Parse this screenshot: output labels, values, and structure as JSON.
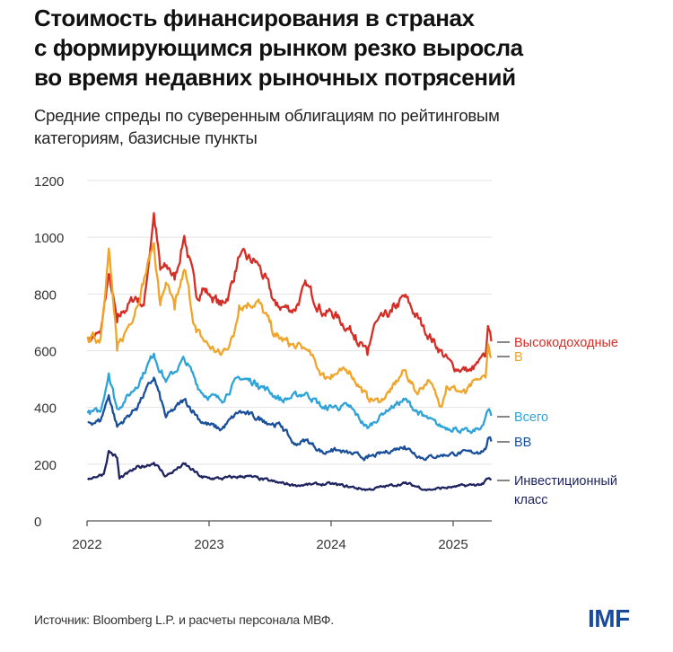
{
  "title_lines": [
    "Стоимость финансирования в странах",
    "с формирующимся рынком резко выросла",
    "во время недавних рыночных потрясений"
  ],
  "subtitle_lines": [
    "Средние спреды по суверенным облигациям по рейтинговым",
    "категориям, базисные пункты"
  ],
  "source": "Источник: Bloomberg L.P. и расчеты персонала МВФ.",
  "logo": "IMF",
  "chart_data": {
    "type": "line",
    "title": "",
    "xlabel": "",
    "ylabel": "",
    "ylim": [
      0,
      1200
    ],
    "xlim": [
      "2022-01-01",
      "2025-04-30"
    ],
    "grid": true,
    "legend": "right, end-of-line labels",
    "y_ticks": [
      "0",
      "200",
      "400",
      "600",
      "800",
      "1000",
      "1200"
    ],
    "x_ticks": [
      "2022",
      "2023",
      "2024",
      "2025"
    ],
    "series": [
      {
        "name": "Высокодоходные",
        "color": "#d42e27",
        "points": [
          [
            "2022-01-03",
            640
          ],
          [
            "2022-02-10",
            660
          ],
          [
            "2022-03-07",
            870
          ],
          [
            "2022-04-01",
            700
          ],
          [
            "2022-04-20",
            740
          ],
          [
            "2022-05-26",
            790
          ],
          [
            "2022-06-20",
            760
          ],
          [
            "2022-07-20",
            1085
          ],
          [
            "2022-08-08",
            885
          ],
          [
            "2022-09-05",
            890
          ],
          [
            "2022-09-20",
            850
          ],
          [
            "2022-10-19",
            1005
          ],
          [
            "2022-11-24",
            790
          ],
          [
            "2022-12-12",
            820
          ],
          [
            "2023-01-02",
            800
          ],
          [
            "2023-02-06",
            760
          ],
          [
            "2023-03-01",
            800
          ],
          [
            "2023-04-01",
            930
          ],
          [
            "2023-05-26",
            910
          ],
          [
            "2023-07-20",
            760
          ],
          [
            "2023-09-13",
            745
          ],
          [
            "2023-10-19",
            830
          ],
          [
            "2023-12-12",
            730
          ],
          [
            "2024-01-02",
            737
          ],
          [
            "2024-03-14",
            655
          ],
          [
            "2024-04-19",
            585
          ],
          [
            "2024-05-08",
            687
          ],
          [
            "2024-07-01",
            737
          ],
          [
            "2024-08-08",
            790
          ],
          [
            "2024-10-01",
            687
          ],
          [
            "2024-11-24",
            600
          ],
          [
            "2025-01-02",
            540
          ],
          [
            "2025-02-24",
            530
          ],
          [
            "2025-04-08",
            580
          ],
          [
            "2025-04-15",
            687
          ],
          [
            "2025-04-25",
            633
          ]
        ]
      },
      {
        "name": "B",
        "color": "#f0a52a",
        "points": [
          [
            "2022-01-03",
            650
          ],
          [
            "2022-02-10",
            640
          ],
          [
            "2022-03-07",
            960
          ],
          [
            "2022-04-01",
            600
          ],
          [
            "2022-05-26",
            745
          ],
          [
            "2022-07-20",
            980
          ],
          [
            "2022-08-08",
            760
          ],
          [
            "2022-08-25",
            840
          ],
          [
            "2022-09-20",
            745
          ],
          [
            "2022-10-19",
            885
          ],
          [
            "2022-11-24",
            665
          ],
          [
            "2023-01-02",
            615
          ],
          [
            "2023-02-06",
            585
          ],
          [
            "2023-03-15",
            650
          ],
          [
            "2023-04-01",
            760
          ],
          [
            "2023-05-26",
            775
          ],
          [
            "2023-07-20",
            650
          ],
          [
            "2023-09-13",
            615
          ],
          [
            "2023-10-19",
            605
          ],
          [
            "2023-12-12",
            505
          ],
          [
            "2024-01-02",
            515
          ],
          [
            "2024-02-25",
            528
          ],
          [
            "2024-04-19",
            433
          ],
          [
            "2024-05-26",
            420
          ],
          [
            "2024-07-01",
            465
          ],
          [
            "2024-08-08",
            532
          ],
          [
            "2024-09-13",
            452
          ],
          [
            "2024-10-19",
            497
          ],
          [
            "2024-11-24",
            405
          ],
          [
            "2024-12-12",
            475
          ],
          [
            "2025-02-06",
            450
          ],
          [
            "2025-03-14",
            497
          ],
          [
            "2025-04-08",
            505
          ],
          [
            "2025-04-15",
            623
          ],
          [
            "2025-04-25",
            575
          ]
        ]
      },
      {
        "name": "Всего",
        "color": "#2ea3d8",
        "points": [
          [
            "2022-01-03",
            380
          ],
          [
            "2022-02-10",
            385
          ],
          [
            "2022-03-07",
            520
          ],
          [
            "2022-04-01",
            395
          ],
          [
            "2022-05-26",
            470
          ],
          [
            "2022-07-20",
            590
          ],
          [
            "2022-08-25",
            490
          ],
          [
            "2022-10-19",
            570
          ],
          [
            "2022-12-12",
            450
          ],
          [
            "2023-02-06",
            425
          ],
          [
            "2023-04-01",
            505
          ],
          [
            "2023-05-26",
            485
          ],
          [
            "2023-08-08",
            425
          ],
          [
            "2023-10-19",
            452
          ],
          [
            "2023-12-12",
            395
          ],
          [
            "2024-01-02",
            402
          ],
          [
            "2024-02-25",
            402
          ],
          [
            "2024-04-19",
            327
          ],
          [
            "2024-06-14",
            390
          ],
          [
            "2024-08-08",
            427
          ],
          [
            "2024-10-01",
            370
          ],
          [
            "2024-11-24",
            332
          ],
          [
            "2025-01-02",
            327
          ],
          [
            "2025-02-24",
            310
          ],
          [
            "2025-04-01",
            338
          ],
          [
            "2025-04-15",
            390
          ],
          [
            "2025-04-25",
            370
          ]
        ]
      },
      {
        "name": "BB",
        "color": "#1a4f9a",
        "points": [
          [
            "2022-01-03",
            348
          ],
          [
            "2022-02-10",
            352
          ],
          [
            "2022-03-07",
            443
          ],
          [
            "2022-04-01",
            332
          ],
          [
            "2022-05-26",
            395
          ],
          [
            "2022-07-20",
            505
          ],
          [
            "2022-08-25",
            365
          ],
          [
            "2022-10-19",
            427
          ],
          [
            "2022-12-12",
            348
          ],
          [
            "2023-02-06",
            322
          ],
          [
            "2023-04-01",
            386
          ],
          [
            "2023-06-14",
            354
          ],
          [
            "2023-08-08",
            332
          ],
          [
            "2023-09-13",
            269
          ],
          [
            "2023-10-19",
            285
          ],
          [
            "2023-12-12",
            237
          ],
          [
            "2024-01-02",
            253
          ],
          [
            "2024-04-19",
            222
          ],
          [
            "2024-08-08",
            263
          ],
          [
            "2024-10-01",
            222
          ],
          [
            "2025-01-02",
            237
          ],
          [
            "2025-03-14",
            243
          ],
          [
            "2025-04-08",
            253
          ],
          [
            "2025-04-15",
            290
          ],
          [
            "2025-04-25",
            280
          ]
        ]
      },
      {
        "name": "Инвестиционный класс",
        "color": "#1f2461",
        "points": [
          [
            "2022-01-03",
            150
          ],
          [
            "2022-02-20",
            165
          ],
          [
            "2022-03-07",
            247
          ],
          [
            "2022-04-01",
            222
          ],
          [
            "2022-04-08",
            149
          ],
          [
            "2022-05-26",
            184
          ],
          [
            "2022-07-20",
            205
          ],
          [
            "2022-08-25",
            158
          ],
          [
            "2022-10-19",
            200
          ],
          [
            "2022-12-12",
            152
          ],
          [
            "2023-02-06",
            149
          ],
          [
            "2023-04-20",
            158
          ],
          [
            "2023-07-20",
            136
          ],
          [
            "2023-09-13",
            126
          ],
          [
            "2024-01-02",
            130
          ],
          [
            "2024-04-19",
            110
          ],
          [
            "2024-08-08",
            133
          ],
          [
            "2024-10-19",
            110
          ],
          [
            "2025-01-02",
            120
          ],
          [
            "2025-04-01",
            130
          ],
          [
            "2025-04-15",
            149
          ],
          [
            "2025-04-25",
            144
          ]
        ]
      }
    ]
  }
}
